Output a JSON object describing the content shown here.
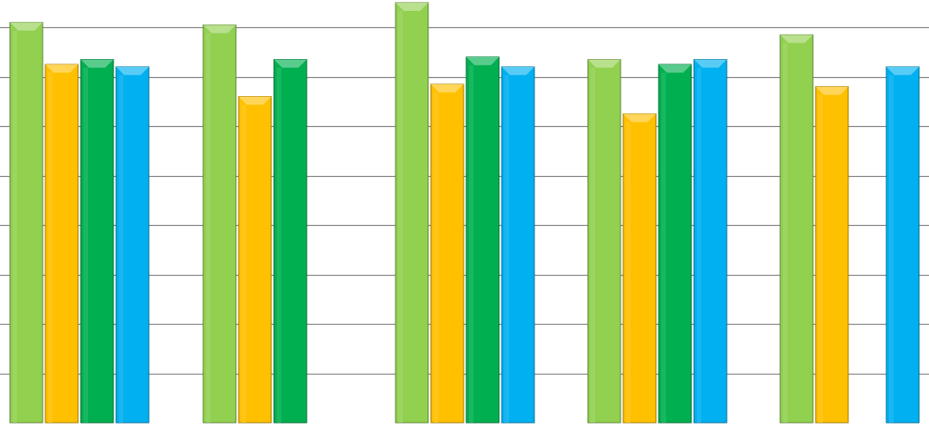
{
  "chart_data": {
    "type": "bar",
    "categories": [
      "",
      "",
      "",
      "",
      ""
    ],
    "series": [
      {
        "values": [
          8.1,
          8.05,
          8.5,
          7.35,
          7.85
        ]
      },
      {
        "values": [
          7.25,
          6.6,
          6.85,
          6.25,
          6.8
        ]
      },
      {
        "values": [
          7.35,
          7.35,
          7.4,
          7.25,
          null
        ]
      },
      {
        "values": [
          7.2,
          null,
          7.2,
          7.35,
          7.2
        ]
      }
    ],
    "ylim": [
      0,
      8.5
    ],
    "grid": true,
    "colors": [
      "#92d050",
      "#ffc000",
      "#00b050",
      "#00b0f0"
    ]
  }
}
